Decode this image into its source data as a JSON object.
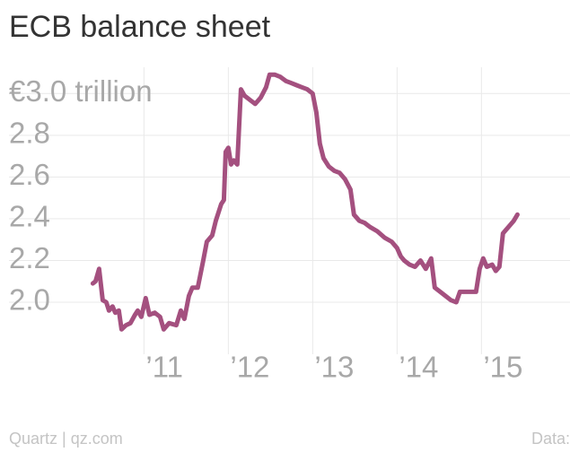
{
  "chart_data": {
    "type": "line",
    "title": "ECB balance sheet",
    "footer_left": "Quartz | qz.com",
    "footer_right": "Data:",
    "color": "#a4507f",
    "grid": true,
    "xlim": [
      2009.4,
      2016.05
    ],
    "xticks": [
      {
        "value": 2011,
        "label": "’11"
      },
      {
        "value": 2012,
        "label": "’12"
      },
      {
        "value": 2013,
        "label": "’13"
      },
      {
        "value": 2014,
        "label": "’14"
      },
      {
        "value": 2015,
        "label": "’15"
      }
    ],
    "ylim": [
      1.86,
      3.1
    ],
    "yticks": [
      {
        "value": 2,
        "label": "2.0"
      },
      2.2,
      2.4,
      2.6,
      2.8,
      {
        "value": 3,
        "label": "€3.0 trillion"
      }
    ],
    "x": [
      2010.394,
      2010.426,
      2010.468,
      2010.511,
      2010.553,
      2010.585,
      2010.628,
      2010.66,
      2010.702,
      2010.734,
      2010.787,
      2010.84,
      2010.894,
      2010.926,
      2010.968,
      2011.021,
      2011.064,
      2011.128,
      2011.191,
      2011.234,
      2011.298,
      2011.383,
      2011.436,
      2011.479,
      2011.532,
      2011.574,
      2011.638,
      2011.702,
      2011.745,
      2011.809,
      2011.851,
      2011.915,
      2011.947,
      2011.968,
      2012,
      2012.032,
      2012.064,
      2012.106,
      2012.149,
      2012.191,
      2012.255,
      2012.319,
      2012.383,
      2012.447,
      2012.489,
      2012.553,
      2012.617,
      2012.681,
      2012.745,
      2012.809,
      2012.872,
      2012.936,
      2013,
      2013.043,
      2013.085,
      2013.128,
      2013.191,
      2013.255,
      2013.319,
      2013.383,
      2013.447,
      2013.489,
      2013.553,
      2013.617,
      2013.681,
      2013.766,
      2013.851,
      2013.936,
      2014,
      2014.043,
      2014.085,
      2014.149,
      2014.213,
      2014.277,
      2014.34,
      2014.404,
      2014.447,
      2014.511,
      2014.574,
      2014.638,
      2014.702,
      2014.745,
      2014.809,
      2014.872,
      2014.936,
      2014.979,
      2015.021,
      2015.064,
      2015.128,
      2015.17,
      2015.213,
      2015.255,
      2015.319,
      2015.383,
      2015.426
    ],
    "values": [
      2.09,
      2.1,
      2.16,
      2.01,
      2.0,
      1.96,
      1.98,
      1.95,
      1.96,
      1.87,
      1.89,
      1.9,
      1.94,
      1.96,
      1.93,
      2.02,
      1.94,
      1.95,
      1.93,
      1.87,
      1.9,
      1.89,
      1.96,
      1.92,
      2.03,
      2.07,
      2.07,
      2.2,
      2.29,
      2.32,
      2.39,
      2.47,
      2.49,
      2.72,
      2.74,
      2.66,
      2.68,
      2.66,
      3.02,
      2.99,
      2.97,
      2.95,
      2.98,
      3.03,
      3.09,
      3.09,
      3.08,
      3.06,
      3.05,
      3.04,
      3.03,
      3.02,
      3.0,
      2.91,
      2.76,
      2.69,
      2.65,
      2.63,
      2.62,
      2.59,
      2.54,
      2.42,
      2.39,
      2.38,
      2.36,
      2.34,
      2.31,
      2.29,
      2.26,
      2.22,
      2.2,
      2.18,
      2.17,
      2.2,
      2.16,
      2.21,
      2.07,
      2.05,
      2.03,
      2.01,
      2.0,
      2.05,
      2.05,
      2.05,
      2.05,
      2.16,
      2.21,
      2.17,
      2.18,
      2.15,
      2.17,
      2.33,
      2.36,
      2.39,
      2.42
    ]
  }
}
